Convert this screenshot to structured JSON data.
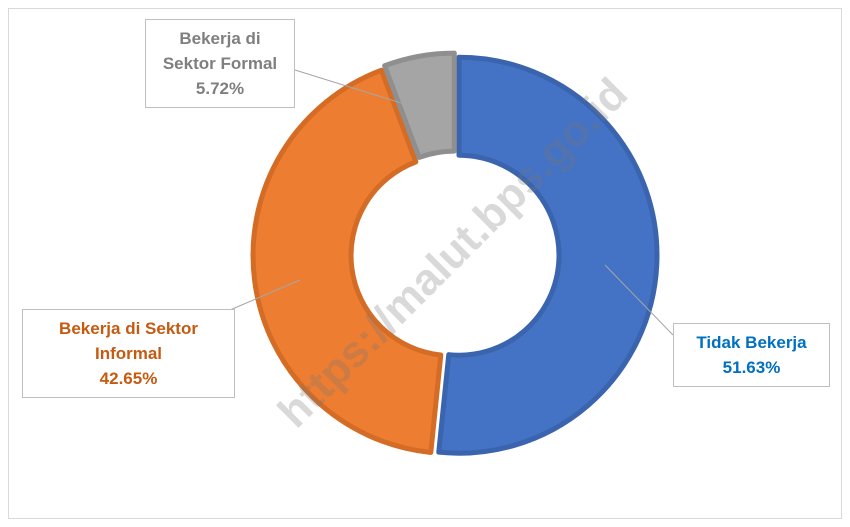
{
  "chart_data": {
    "type": "donut",
    "categories": [
      "Tidak Bekerja",
      "Bekerja di Sektor Informal",
      "Bekerja di Sektor Formal"
    ],
    "values": [
      51.63,
      42.65,
      5.72
    ],
    "value_labels": [
      "51.63%",
      "42.65%",
      "5.72%"
    ],
    "colors": [
      "#4472c4",
      "#ed7d31",
      "#a5a5a5"
    ],
    "border_colors": [
      "#3a64ae",
      "#d56c25",
      "#8f8f8f"
    ],
    "label_colors": [
      "#0070c0",
      "#c55a11",
      "#7f7f7f"
    ],
    "watermark": "https://malut.bps.go.id"
  }
}
